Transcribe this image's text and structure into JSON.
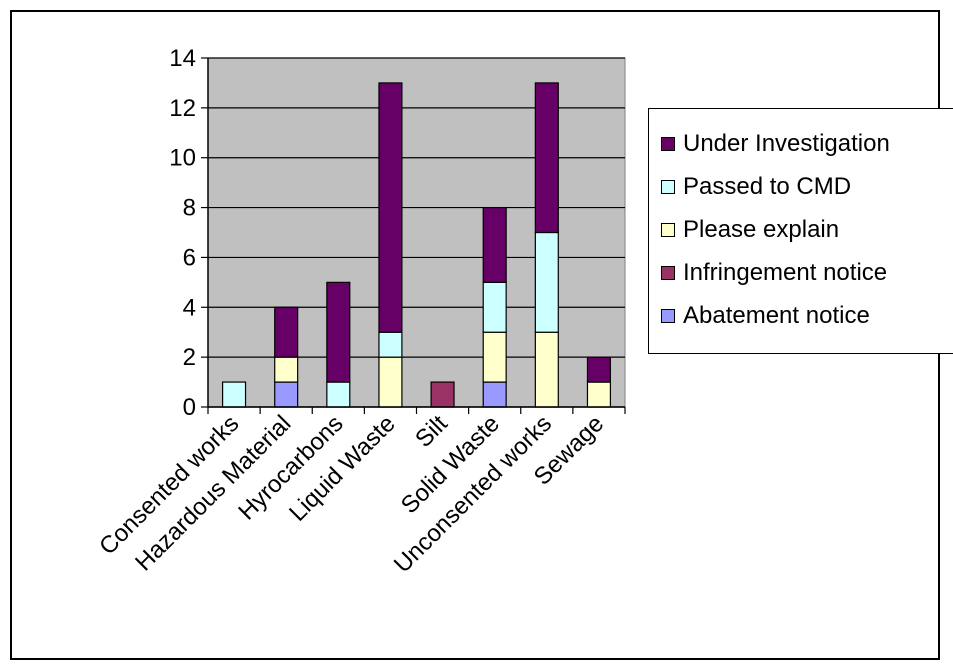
{
  "chart_data": {
    "type": "bar",
    "stacked": true,
    "categories": [
      "Consented works",
      "Hazardous Material",
      "Hyrocarbons",
      "Liquid Waste",
      "Silt",
      "Solid Waste",
      "Unconsented works",
      "Sewage"
    ],
    "series": [
      {
        "name": "Abatement notice",
        "color": "#9999ff",
        "values": [
          0,
          1,
          0,
          0,
          0,
          1,
          0,
          0
        ]
      },
      {
        "name": "Infringement notice",
        "color": "#993366",
        "values": [
          0,
          0,
          0,
          0,
          1,
          0,
          0,
          0
        ]
      },
      {
        "name": "Please explain",
        "color": "#ffffcc",
        "values": [
          0,
          1,
          0,
          2,
          0,
          2,
          3,
          1
        ]
      },
      {
        "name": "Passed to CMD",
        "color": "#ccffff",
        "values": [
          1,
          0,
          1,
          1,
          0,
          2,
          4,
          0
        ]
      },
      {
        "name": "Under Investigation",
        "color": "#660066",
        "values": [
          0,
          2,
          4,
          10,
          0,
          3,
          6,
          1
        ]
      }
    ],
    "legend_order": [
      "Under Investigation",
      "Passed to CMD",
      "Please explain",
      "Infringement notice",
      "Abatement notice"
    ],
    "title": "",
    "xlabel": "",
    "ylabel": "",
    "ylim": [
      0,
      14
    ],
    "yticks": [
      "0",
      "2",
      "4",
      "6",
      "8",
      "10",
      "12",
      "14"
    ],
    "plot_background": "#c0c0c0",
    "grid": true,
    "legend_position": "right"
  }
}
